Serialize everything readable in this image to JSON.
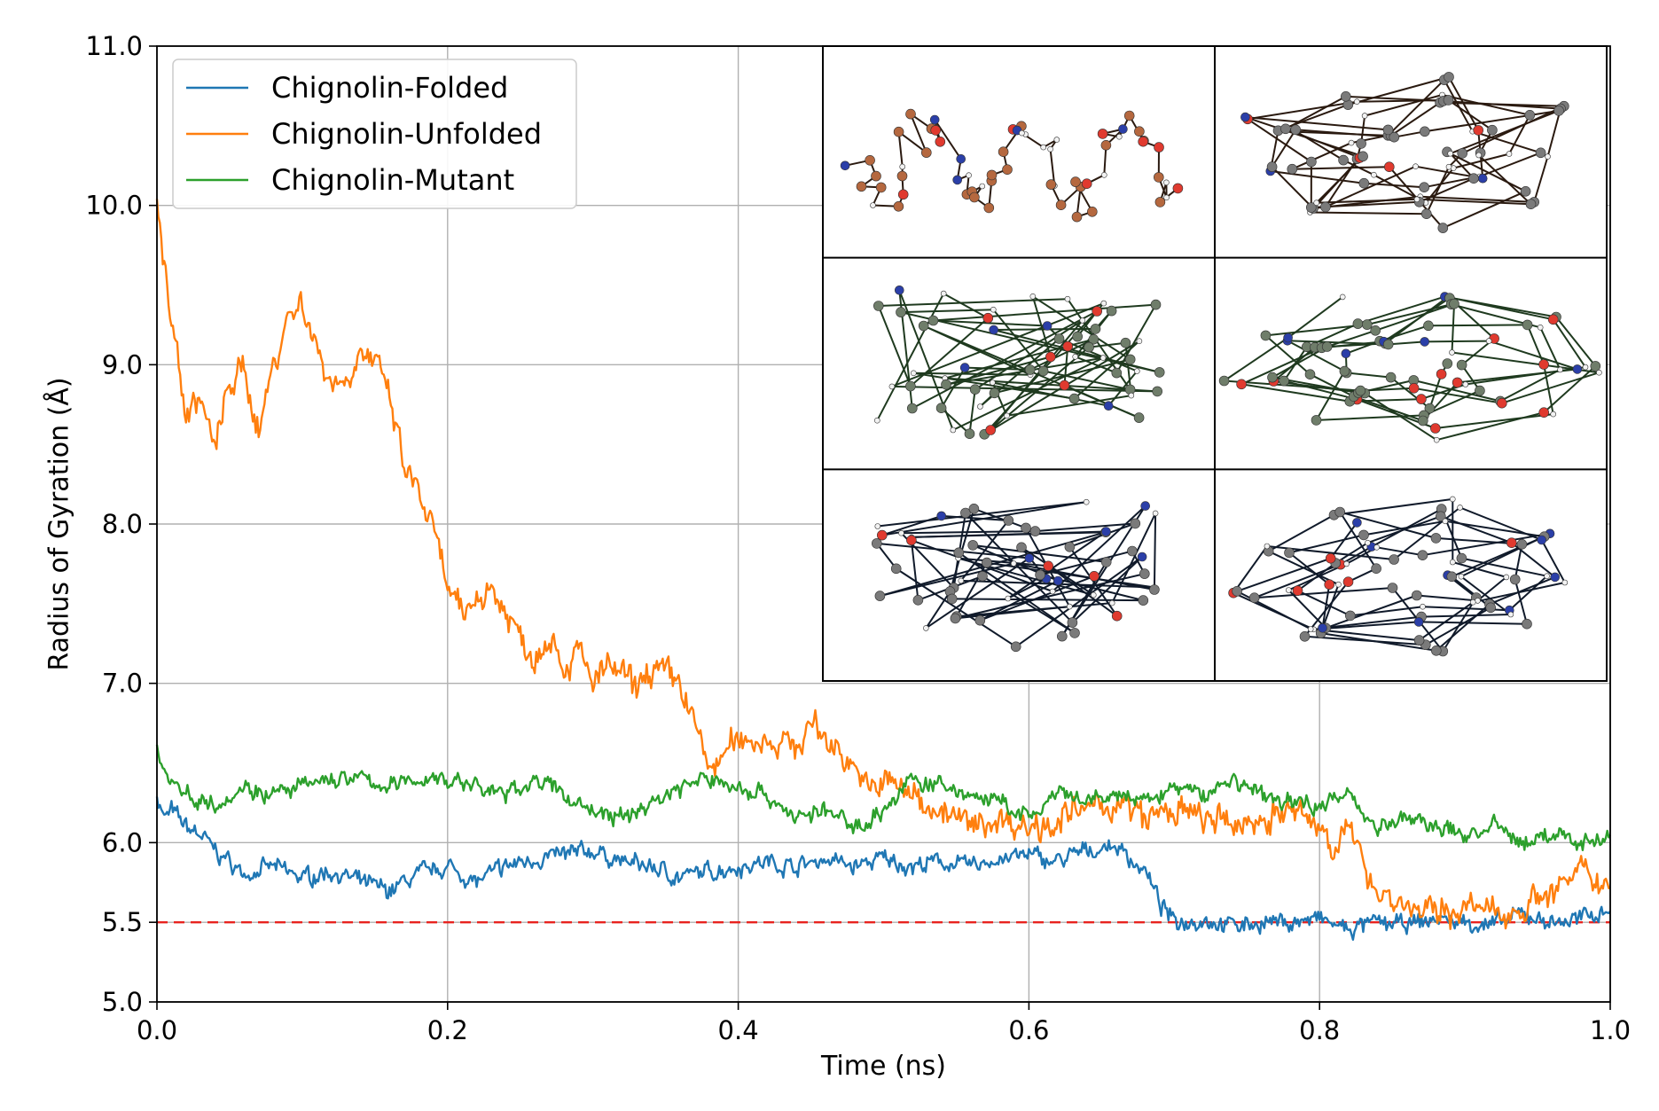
{
  "chart_data": {
    "type": "line",
    "title": "",
    "xlabel": "Time (ns)",
    "ylabel": "Radius of Gyration (Å)",
    "xlim": [
      0.0,
      1.0
    ],
    "ylim": [
      5.0,
      11.0
    ],
    "xticks": [
      "0.0",
      "0.2",
      "0.4",
      "0.6",
      "0.8",
      "1.0"
    ],
    "yticks": [
      "5.0",
      "5.5",
      "6.0",
      "7.0",
      "8.0",
      "9.0",
      "10.0",
      "11.0"
    ],
    "grid": true,
    "legend_position": "top-left",
    "reference_line": {
      "y": 5.5,
      "color": "#e8231f",
      "style": "dashed"
    },
    "series": [
      {
        "name": "Chignolin-Folded",
        "color": "#1f77b4",
        "x": [
          0.0,
          0.005,
          0.01,
          0.02,
          0.03,
          0.04,
          0.05,
          0.06,
          0.08,
          0.1,
          0.12,
          0.14,
          0.16,
          0.18,
          0.2,
          0.22,
          0.24,
          0.26,
          0.28,
          0.3,
          0.32,
          0.34,
          0.36,
          0.38,
          0.4,
          0.42,
          0.44,
          0.46,
          0.48,
          0.5,
          0.52,
          0.54,
          0.56,
          0.58,
          0.6,
          0.62,
          0.64,
          0.66,
          0.68,
          0.69,
          0.7,
          0.72,
          0.74,
          0.76,
          0.78,
          0.8,
          0.82,
          0.84,
          0.86,
          0.88,
          0.9,
          0.92,
          0.94,
          0.96,
          0.98,
          1.0
        ],
        "y": [
          6.3,
          6.15,
          6.2,
          6.1,
          6.05,
          5.95,
          5.88,
          5.8,
          5.85,
          5.78,
          5.82,
          5.75,
          5.7,
          5.8,
          5.85,
          5.75,
          5.85,
          5.9,
          5.92,
          5.95,
          5.88,
          5.85,
          5.78,
          5.82,
          5.85,
          5.88,
          5.85,
          5.9,
          5.85,
          5.9,
          5.85,
          5.88,
          5.85,
          5.9,
          5.92,
          5.88,
          5.95,
          5.98,
          5.82,
          5.62,
          5.5,
          5.52,
          5.48,
          5.5,
          5.5,
          5.52,
          5.45,
          5.5,
          5.48,
          5.52,
          5.5,
          5.48,
          5.55,
          5.5,
          5.52,
          5.6
        ]
      },
      {
        "name": "Chignolin-Unfolded",
        "color": "#ff7f0e",
        "x": [
          0.0,
          0.005,
          0.01,
          0.02,
          0.03,
          0.04,
          0.05,
          0.06,
          0.07,
          0.08,
          0.09,
          0.1,
          0.11,
          0.12,
          0.13,
          0.14,
          0.15,
          0.16,
          0.17,
          0.18,
          0.19,
          0.2,
          0.21,
          0.22,
          0.23,
          0.24,
          0.25,
          0.26,
          0.27,
          0.28,
          0.29,
          0.3,
          0.31,
          0.32,
          0.33,
          0.34,
          0.35,
          0.36,
          0.37,
          0.38,
          0.39,
          0.4,
          0.42,
          0.44,
          0.45,
          0.46,
          0.48,
          0.49,
          0.5,
          0.52,
          0.54,
          0.56,
          0.58,
          0.6,
          0.62,
          0.64,
          0.66,
          0.68,
          0.7,
          0.72,
          0.74,
          0.76,
          0.78,
          0.8,
          0.81,
          0.82,
          0.83,
          0.84,
          0.86,
          0.88,
          0.9,
          0.92,
          0.94,
          0.96,
          0.98,
          1.0
        ],
        "y": [
          10.0,
          9.6,
          9.3,
          8.7,
          8.8,
          8.45,
          8.9,
          8.95,
          8.6,
          9.0,
          9.3,
          9.4,
          9.1,
          8.9,
          8.9,
          9.1,
          9.0,
          8.8,
          8.35,
          8.2,
          7.95,
          7.6,
          7.4,
          7.55,
          7.6,
          7.45,
          7.3,
          7.15,
          7.35,
          7.1,
          7.2,
          7.0,
          7.1,
          7.05,
          6.95,
          7.1,
          7.05,
          7.0,
          6.75,
          6.45,
          6.55,
          6.65,
          6.65,
          6.6,
          6.75,
          6.65,
          6.5,
          6.3,
          6.4,
          6.3,
          6.2,
          6.1,
          6.15,
          6.1,
          6.15,
          6.2,
          6.25,
          6.15,
          6.2,
          6.15,
          6.1,
          6.15,
          6.2,
          6.1,
          6.0,
          6.05,
          5.9,
          5.7,
          5.6,
          5.55,
          5.6,
          5.55,
          5.6,
          5.7,
          5.8,
          5.75
        ]
      },
      {
        "name": "Chignolin-Mutant",
        "color": "#2ca02c",
        "x": [
          0.0,
          0.005,
          0.01,
          0.02,
          0.04,
          0.06,
          0.08,
          0.1,
          0.12,
          0.14,
          0.16,
          0.18,
          0.2,
          0.22,
          0.24,
          0.26,
          0.28,
          0.3,
          0.3,
          0.32,
          0.34,
          0.36,
          0.38,
          0.4,
          0.42,
          0.44,
          0.46,
          0.48,
          0.5,
          0.52,
          0.54,
          0.56,
          0.58,
          0.6,
          0.62,
          0.64,
          0.66,
          0.68,
          0.7,
          0.72,
          0.74,
          0.76,
          0.78,
          0.8,
          0.82,
          0.83,
          0.84,
          0.86,
          0.88,
          0.9,
          0.92,
          0.94,
          0.96,
          0.98,
          1.0
        ],
        "y": [
          6.6,
          6.45,
          6.4,
          6.3,
          6.25,
          6.35,
          6.3,
          6.35,
          6.4,
          6.4,
          6.35,
          6.4,
          6.4,
          6.35,
          6.3,
          6.4,
          6.3,
          6.2,
          6.2,
          6.15,
          6.25,
          6.35,
          6.4,
          6.35,
          6.3,
          6.15,
          6.2,
          6.1,
          6.2,
          6.4,
          6.35,
          6.3,
          6.25,
          6.15,
          6.3,
          6.25,
          6.3,
          6.25,
          6.35,
          6.3,
          6.4,
          6.3,
          6.25,
          6.25,
          6.3,
          6.2,
          6.1,
          6.15,
          6.1,
          6.05,
          6.1,
          6.0,
          6.05,
          6.0,
          6.05
        ]
      }
    ],
    "inset": {
      "rows": 3,
      "cols": 2,
      "panels": [
        {
          "atom_color": "#b5683f",
          "bond_color": "#2a1a10",
          "form": "extended"
        },
        {
          "atom_color": "#7a7a7a",
          "bond_color": "#2a1a10",
          "form": "compact"
        },
        {
          "atom_color": "#6f7d6a",
          "bond_color": "#1f3a1f",
          "form": "loose"
        },
        {
          "atom_color": "#6f7d6a",
          "bond_color": "#1f3a1f",
          "form": "compact"
        },
        {
          "atom_color": "#7a7a7a",
          "bond_color": "#101a2a",
          "form": "loose"
        },
        {
          "atom_color": "#7a7a7a",
          "bond_color": "#101a2a",
          "form": "compact"
        }
      ]
    }
  }
}
